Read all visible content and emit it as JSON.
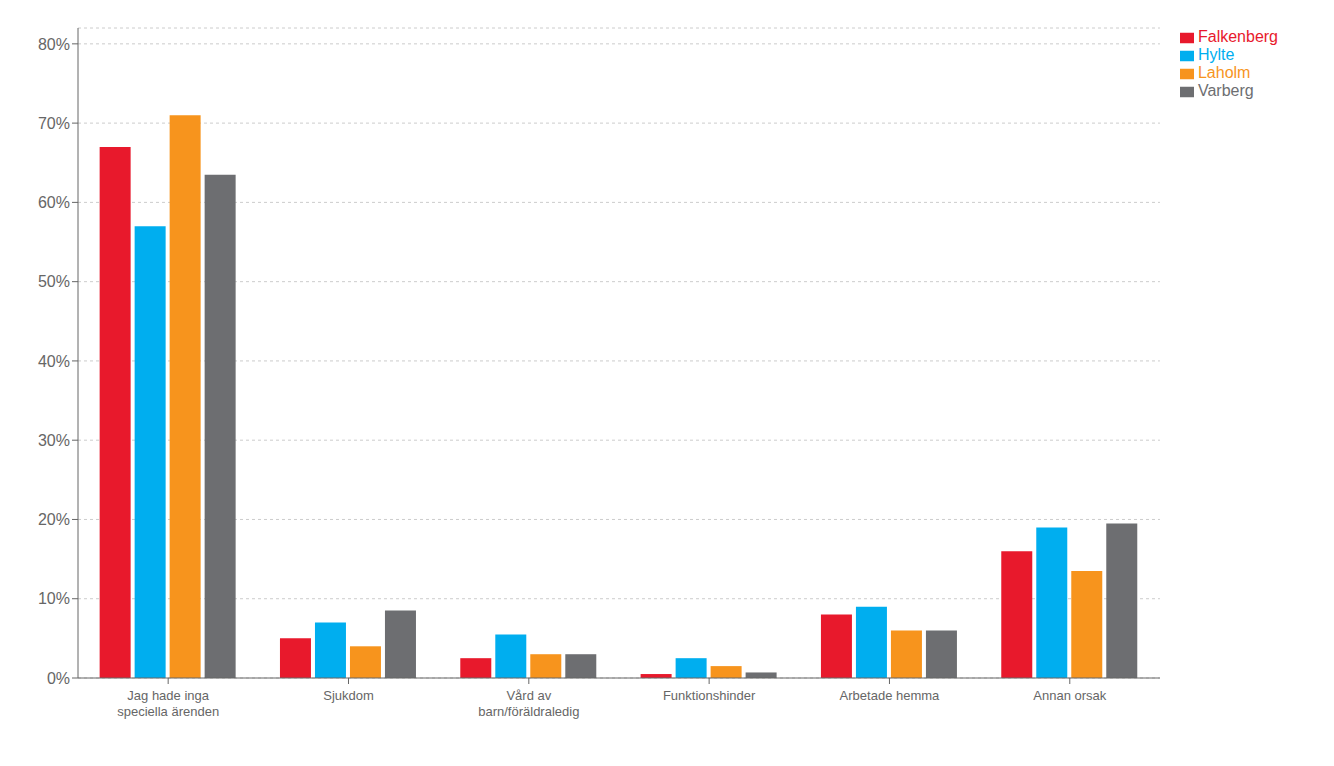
{
  "chart_data": {
    "type": "bar",
    "categories": [
      "Jag hade inga\nspeciella ärenden",
      "Sjukdom",
      "Vård av\nbarn/föräldraledig",
      "Funktionshinder",
      "Arbetade hemma",
      "Annan orsak"
    ],
    "series": [
      {
        "name": "Falkenberg",
        "color": "#e8192c",
        "values": [
          0.67,
          0.05,
          0.025,
          0.005,
          0.08,
          0.16
        ]
      },
      {
        "name": "Hylte",
        "color": "#00aeef",
        "values": [
          0.57,
          0.07,
          0.055,
          0.025,
          0.09,
          0.19
        ]
      },
      {
        "name": "Laholm",
        "color": "#f7941d",
        "values": [
          0.71,
          0.04,
          0.03,
          0.015,
          0.06,
          0.135
        ]
      },
      {
        "name": "Varberg",
        "color": "#6d6e71",
        "values": [
          0.635,
          0.085,
          0.03,
          0.007,
          0.06,
          0.195
        ]
      }
    ],
    "ylim": [
      0,
      0.82
    ],
    "yticks": [
      {
        "value": 0,
        "label": "0%"
      },
      {
        "value": 0.1,
        "label": "10%"
      },
      {
        "value": 0.2,
        "label": "20%"
      },
      {
        "value": 0.3,
        "label": "30%"
      },
      {
        "value": 0.4,
        "label": "40%"
      },
      {
        "value": 0.5,
        "label": "50%"
      },
      {
        "value": 0.6,
        "label": "60%"
      },
      {
        "value": 0.7,
        "label": "70%"
      },
      {
        "value": 0.8,
        "label": "80%"
      }
    ],
    "grid": true,
    "legend": "upper right"
  }
}
